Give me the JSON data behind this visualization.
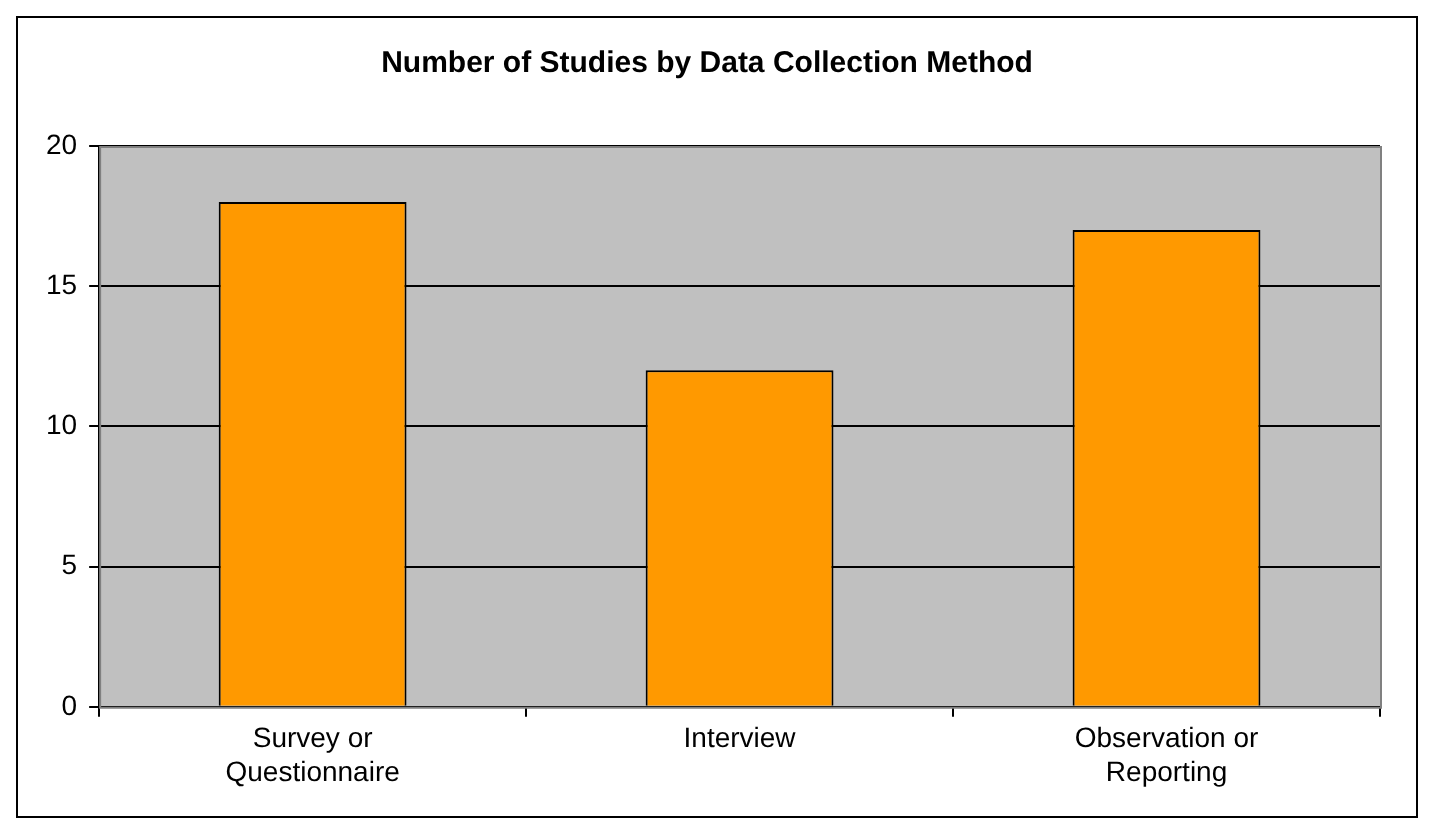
{
  "chart_data": {
    "type": "bar",
    "title": "Number of Studies by Data Collection Method",
    "categories": [
      "Survey or Questionnaire",
      "Interview",
      "Observation or Reporting"
    ],
    "values": [
      18,
      12,
      17
    ],
    "color": "#ff9900",
    "ylim": [
      0,
      20
    ],
    "yticks": [
      0,
      5,
      10,
      15,
      20
    ],
    "grid": "y",
    "legend": false
  }
}
